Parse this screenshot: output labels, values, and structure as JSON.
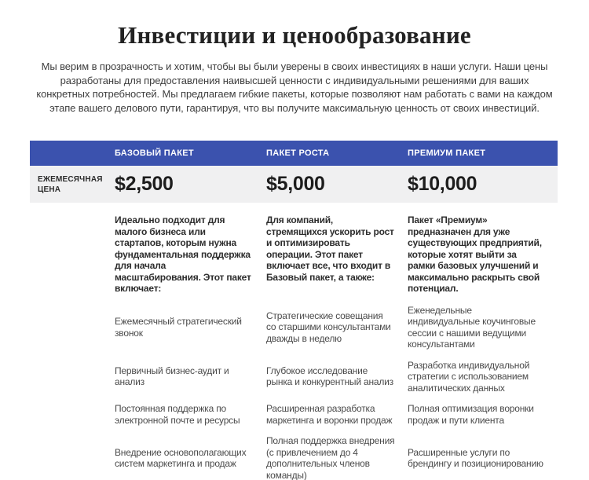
{
  "page": {
    "title": "Инвестиции и ценообразование",
    "intro": "Мы верим в прозрачность и хотим, чтобы вы были уверены в своих инвестициях в наши услуги. Наши цены разработаны для предоставления наивысшей ценности с индивидуальными решениями для ваших конкретных потребностей. Мы предлагаем гибкие пакеты, которые позволяют нам работать с вами на каждом этапе вашего делового пути, гарантируя, что вы получите максимальную ценность от своих инвестиций."
  },
  "table": {
    "price_row_label": "ЕЖЕМЕСЯЧНАЯ ЦЕНА",
    "columns": [
      {
        "name": "БАЗОВЫЙ ПАКЕТ",
        "price": "$2,500",
        "description": "Идеально подходит для малого бизнеса или стартапов, которым нужна фундаментальная поддержка для начала масштабирования. Этот пакет включает:",
        "features": [
          "Ежемесячный стратегический звонок",
          "Первичный бизнес-аудит и анализ",
          "Постоянная поддержка по электронной почте и ресурсы",
          "Внедрение основополагающих систем маркетинга и продаж"
        ]
      },
      {
        "name": "ПАКЕТ РОСТА",
        "price": "$5,000",
        "description": "Для компаний, стремящихся ускорить рост и оптимизировать операции. Этот пакет включает все, что входит в Базовый пакет, а также:",
        "features": [
          "Стратегические совещания со старшими консультантами дважды в неделю",
          "Глубокое исследование рынка и конкурентный анализ",
          "Расширенная разработка маркетинга и воронки продаж",
          "Полная поддержка внедрения (с привлечением до 4 дополнительных членов команды)"
        ]
      },
      {
        "name": "ПРЕМИУМ ПАКЕТ",
        "price": "$10,000",
        "description": "Пакет «Премиум» предназначен для уже существующих предприятий, которые хотят выйти за рамки базовых улучшений и максимально раскрыть свой потенциал.",
        "features": [
          "Еженедельные индивидуальные коучинговые сессии с нашими ведущими консультантами",
          "Разработка индивидуальной стратегии с использованием аналитических данных",
          "Полная оптимизация воронки продаж и пути клиента",
          "Расширенные услуги по брендингу и позиционированию"
        ]
      }
    ]
  },
  "colors": {
    "header_bg": "#3b52ae",
    "header_text": "#ffffff",
    "price_row_bg": "#f0f0f1",
    "title_text": "#222222",
    "bold_text": "#2d2d2d",
    "body_text": "#4a4a4a"
  }
}
